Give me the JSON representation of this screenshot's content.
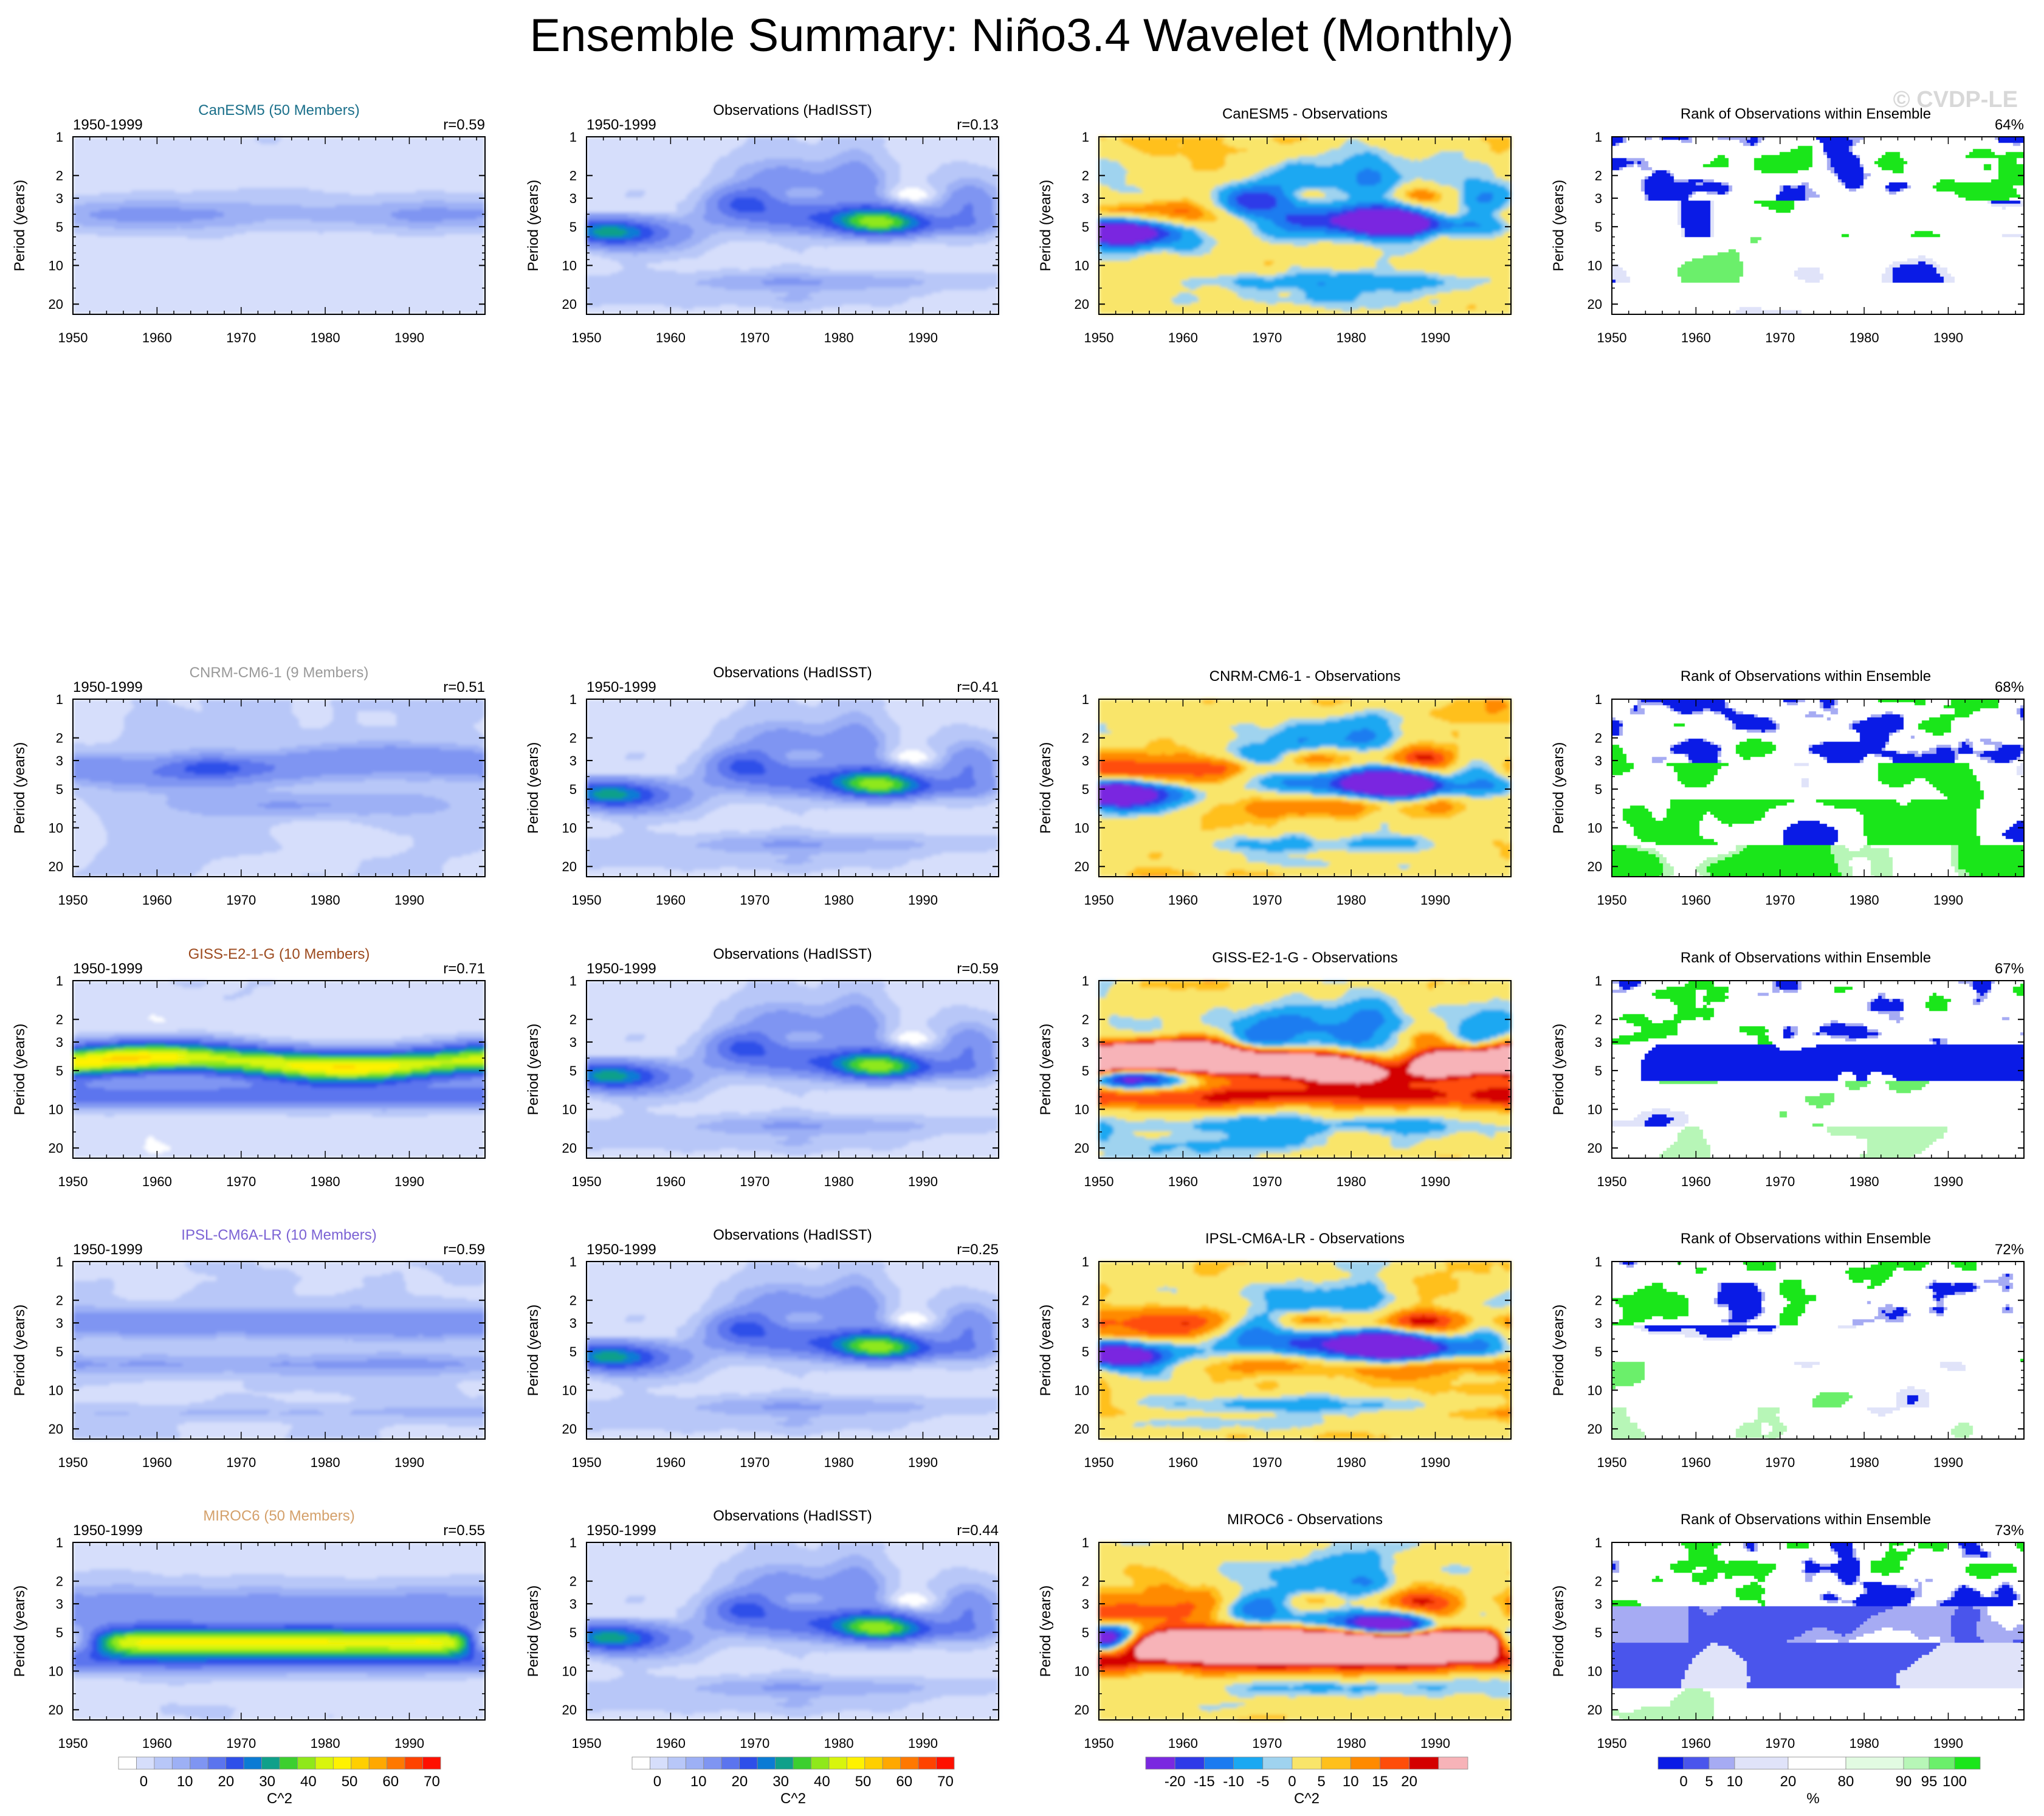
{
  "title": "Ensemble Summary: Niño3.4 Wavelet (Monthly)",
  "copyright": "© CVDP-LE",
  "common": {
    "ylabel": "Period (years)",
    "period_label": "1950-1999",
    "x_ticks": [
      1950,
      1960,
      1970,
      1980,
      1990
    ],
    "y_ticks": [
      1,
      2,
      3,
      5,
      10,
      20
    ],
    "obs_title": "Observations (HadISST)",
    "rank_title": "Rank of Observations within Ensemble",
    "xlim": [
      1950,
      1999
    ],
    "ylim": [
      1,
      24
    ]
  },
  "colors": {
    "model_CanESM5": "#1a6f8a",
    "model_CNRM": "#999999",
    "model_GISS": "#9c4a1e",
    "model_IPSL": "#7b62d4",
    "model_MIROC": "#d4a06a"
  },
  "rows": [
    {
      "model": "CanESM5",
      "ens_label": "CanESM5 (50 Members)",
      "diff_title": "CanESM5 - Observations",
      "r_model": "r=0.59",
      "r_obs": "r=0.13",
      "rank_pct": "64%"
    },
    {
      "model": "CNRM-CM6-1",
      "ens_label": "CNRM-CM6-1 (9 Members)",
      "diff_title": "CNRM-CM6-1 - Observations",
      "r_model": "r=0.51",
      "r_obs": "r=0.41",
      "rank_pct": "68%"
    },
    {
      "model": "GISS-E2-1-G",
      "ens_label": "GISS-E2-1-G (10 Members)",
      "diff_title": "GISS-E2-1-G - Observations",
      "r_model": "r=0.71",
      "r_obs": "r=0.59",
      "rank_pct": "67%"
    },
    {
      "model": "IPSL-CM6A-LR",
      "ens_label": "IPSL-CM6A-LR (10 Members)",
      "diff_title": "IPSL-CM6A-LR - Observations",
      "r_model": "r=0.59",
      "r_obs": "r=0.25",
      "rank_pct": "72%"
    },
    {
      "model": "MIROC6",
      "ens_label": "MIROC6 (50 Members)",
      "diff_title": "MIROC6 - Observations",
      "r_model": "r=0.55",
      "r_obs": "r=0.44",
      "rank_pct": "73%"
    }
  ],
  "chart_data": {
    "type": "heatmap",
    "description_of_fields": "wavelet power contour fields (period vs time); values in C^2, differences in C^2, rank in %",
    "power_colorbar": {
      "unit": "C^2",
      "tick_labels": [
        "0",
        "10",
        "20",
        "30",
        "40",
        "50",
        "60",
        "70"
      ],
      "colors": [
        "#ffffff",
        "#d6defb",
        "#b8c7f8",
        "#9db0f5",
        "#7f95f2",
        "#5b74ee",
        "#2e4fe9",
        "#0b7bd4",
        "#0fa08a",
        "#3ccf2f",
        "#8fe81a",
        "#d8f50c",
        "#fff200",
        "#ffcf00",
        "#ffa800",
        "#ff7800",
        "#ff4200",
        "#ff1000"
      ]
    },
    "diff_colorbar": {
      "unit": "C^2",
      "tick_labels": [
        "-20",
        "-15",
        "-10",
        "-5",
        "0",
        "5",
        "10",
        "15",
        "20"
      ],
      "colors": [
        "#7a28e0",
        "#2f3ae8",
        "#1b7bf0",
        "#1aa8f2",
        "#9fd3ef",
        "#f9e56a",
        "#ffc01c",
        "#ff8a00",
        "#ff4d0a",
        "#d40000",
        "#f7b3b8"
      ]
    },
    "rank_colorbar": {
      "unit": "%",
      "tick_labels": [
        "0",
        "5",
        "10",
        "20",
        "80",
        "90",
        "95",
        "100"
      ],
      "colors": [
        "#0a1be6",
        "#4a55ec",
        "#a6abf3",
        "#e0e3f9",
        "#ffffff",
        "#e2fbe2",
        "#b7f6b7",
        "#6bef6b",
        "#1ae61a"
      ]
    },
    "power_levels_c2": [
      0,
      2.5,
      5,
      7.5,
      10,
      15,
      20,
      25,
      30,
      35,
      40,
      45,
      50,
      55,
      60,
      65,
      70,
      75
    ],
    "diff_levels_c2": [
      -20,
      -15,
      -10,
      -5,
      -2.5,
      2.5,
      5,
      10,
      15,
      20
    ],
    "rank_levels_pct": [
      0,
      5,
      10,
      20,
      80,
      90,
      95,
      100
    ]
  }
}
